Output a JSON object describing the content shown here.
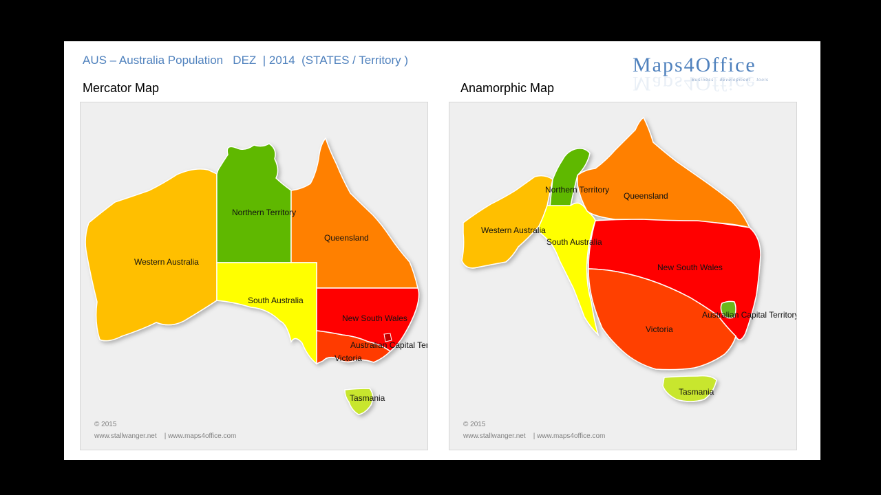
{
  "header": {
    "title": "AUS – Australia Population   DEZ  | 2014  (STATES / Territory )",
    "logo_text": "Maps4Office",
    "logo_sub": "Business · development · tools"
  },
  "panels": [
    {
      "title": "Mercator Map",
      "copyright": "© 2015",
      "links": "www.stallwanger.net    | www.maps4office.com",
      "regions": {
        "wa": "Western Australia",
        "nt": "Northern Territory",
        "qld": "Queensland",
        "sa": "South Australia",
        "nsw": "New South Wales",
        "act": "Australian Capital Territory",
        "vic": "Victoria",
        "tas": "Tasmania"
      }
    },
    {
      "title": "Anamorphic  Map",
      "copyright": "© 2015",
      "links": "www.stallwanger.net    | www.maps4office.com",
      "regions": {
        "wa": "Western Australia",
        "nt": "Northern Territory",
        "qld": "Queensland",
        "sa": "South Australia",
        "nsw": "New South Wales",
        "act": "Australian Capital Territory",
        "vic": "Victoria",
        "tas": "Tasmania"
      }
    }
  ],
  "colors": {
    "wa": "#ffbf00",
    "nt": "#5fb800",
    "qld": "#ff8000",
    "sa": "#ffff00",
    "nsw": "#ff0000",
    "act": "#c00000",
    "vic": "#ff3a00",
    "tas": "#c8e62d",
    "act_anamorphic": "#6ab81a",
    "vic_anamorphic": "#ff4000"
  }
}
